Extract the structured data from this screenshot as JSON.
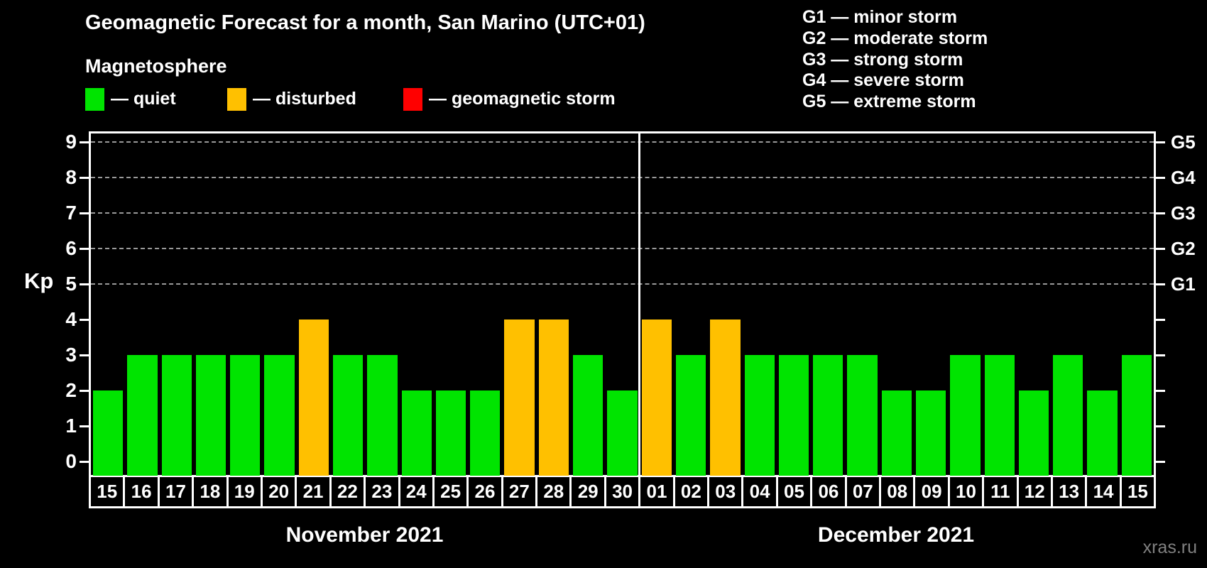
{
  "header": {
    "title": "Geomagnetic Forecast for a month, San Marino (UTC+01)",
    "subtitle": "Magnetosphere"
  },
  "legend": {
    "items": [
      {
        "label": "— quiet",
        "status": "quiet",
        "color": "#00e400"
      },
      {
        "label": "— disturbed",
        "status": "disturbed",
        "color": "#ffc000"
      },
      {
        "label": "— geomagnetic storm",
        "status": "storm",
        "color": "#ff0000"
      }
    ]
  },
  "g_legend": {
    "items": [
      "G1 — minor storm",
      "G2 — moderate storm",
      "G3 — strong storm",
      "G4 — severe storm",
      "G5 — extreme storm"
    ]
  },
  "watermark": "xras.ru",
  "chart_data": {
    "type": "bar",
    "title": "Geomagnetic Forecast for a month, San Marino (UTC+01)",
    "ylabel": "Kp",
    "ylim": [
      0,
      9
    ],
    "y_ticks": [
      0,
      1,
      2,
      3,
      4,
      5,
      6,
      7,
      8,
      9
    ],
    "gridline_kp": [
      5,
      6,
      7,
      8,
      9
    ],
    "right_axis": [
      {
        "label": "G1",
        "kp": 5
      },
      {
        "label": "G2",
        "kp": 6
      },
      {
        "label": "G3",
        "kp": 7
      },
      {
        "label": "G4",
        "kp": 8
      },
      {
        "label": "G5",
        "kp": 9
      }
    ],
    "status_colors": {
      "quiet": "#00e400",
      "disturbed": "#ffc000",
      "storm": "#ff0000"
    },
    "months": [
      {
        "name": "November 2021",
        "days": [
          {
            "day": "15",
            "kp": 2,
            "status": "quiet"
          },
          {
            "day": "16",
            "kp": 3,
            "status": "quiet"
          },
          {
            "day": "17",
            "kp": 3,
            "status": "quiet"
          },
          {
            "day": "18",
            "kp": 3,
            "status": "quiet"
          },
          {
            "day": "19",
            "kp": 3,
            "status": "quiet"
          },
          {
            "day": "20",
            "kp": 3,
            "status": "quiet"
          },
          {
            "day": "21",
            "kp": 4,
            "status": "disturbed"
          },
          {
            "day": "22",
            "kp": 3,
            "status": "quiet"
          },
          {
            "day": "23",
            "kp": 3,
            "status": "quiet"
          },
          {
            "day": "24",
            "kp": 2,
            "status": "quiet"
          },
          {
            "day": "25",
            "kp": 2,
            "status": "quiet"
          },
          {
            "day": "26",
            "kp": 2,
            "status": "quiet"
          },
          {
            "day": "27",
            "kp": 4,
            "status": "disturbed"
          },
          {
            "day": "28",
            "kp": 4,
            "status": "disturbed"
          },
          {
            "day": "29",
            "kp": 3,
            "status": "quiet"
          },
          {
            "day": "30",
            "kp": 2,
            "status": "quiet"
          }
        ]
      },
      {
        "name": "December 2021",
        "days": [
          {
            "day": "01",
            "kp": 4,
            "status": "disturbed"
          },
          {
            "day": "02",
            "kp": 3,
            "status": "quiet"
          },
          {
            "day": "03",
            "kp": 4,
            "status": "disturbed"
          },
          {
            "day": "04",
            "kp": 3,
            "status": "quiet"
          },
          {
            "day": "05",
            "kp": 3,
            "status": "quiet"
          },
          {
            "day": "06",
            "kp": 3,
            "status": "quiet"
          },
          {
            "day": "07",
            "kp": 3,
            "status": "quiet"
          },
          {
            "day": "08",
            "kp": 2,
            "status": "quiet"
          },
          {
            "day": "09",
            "kp": 2,
            "status": "quiet"
          },
          {
            "day": "10",
            "kp": 3,
            "status": "quiet"
          },
          {
            "day": "11",
            "kp": 3,
            "status": "quiet"
          },
          {
            "day": "12",
            "kp": 2,
            "status": "quiet"
          },
          {
            "day": "13",
            "kp": 3,
            "status": "quiet"
          },
          {
            "day": "14",
            "kp": 2,
            "status": "quiet"
          },
          {
            "day": "15",
            "kp": 3,
            "status": "quiet"
          }
        ]
      }
    ]
  }
}
